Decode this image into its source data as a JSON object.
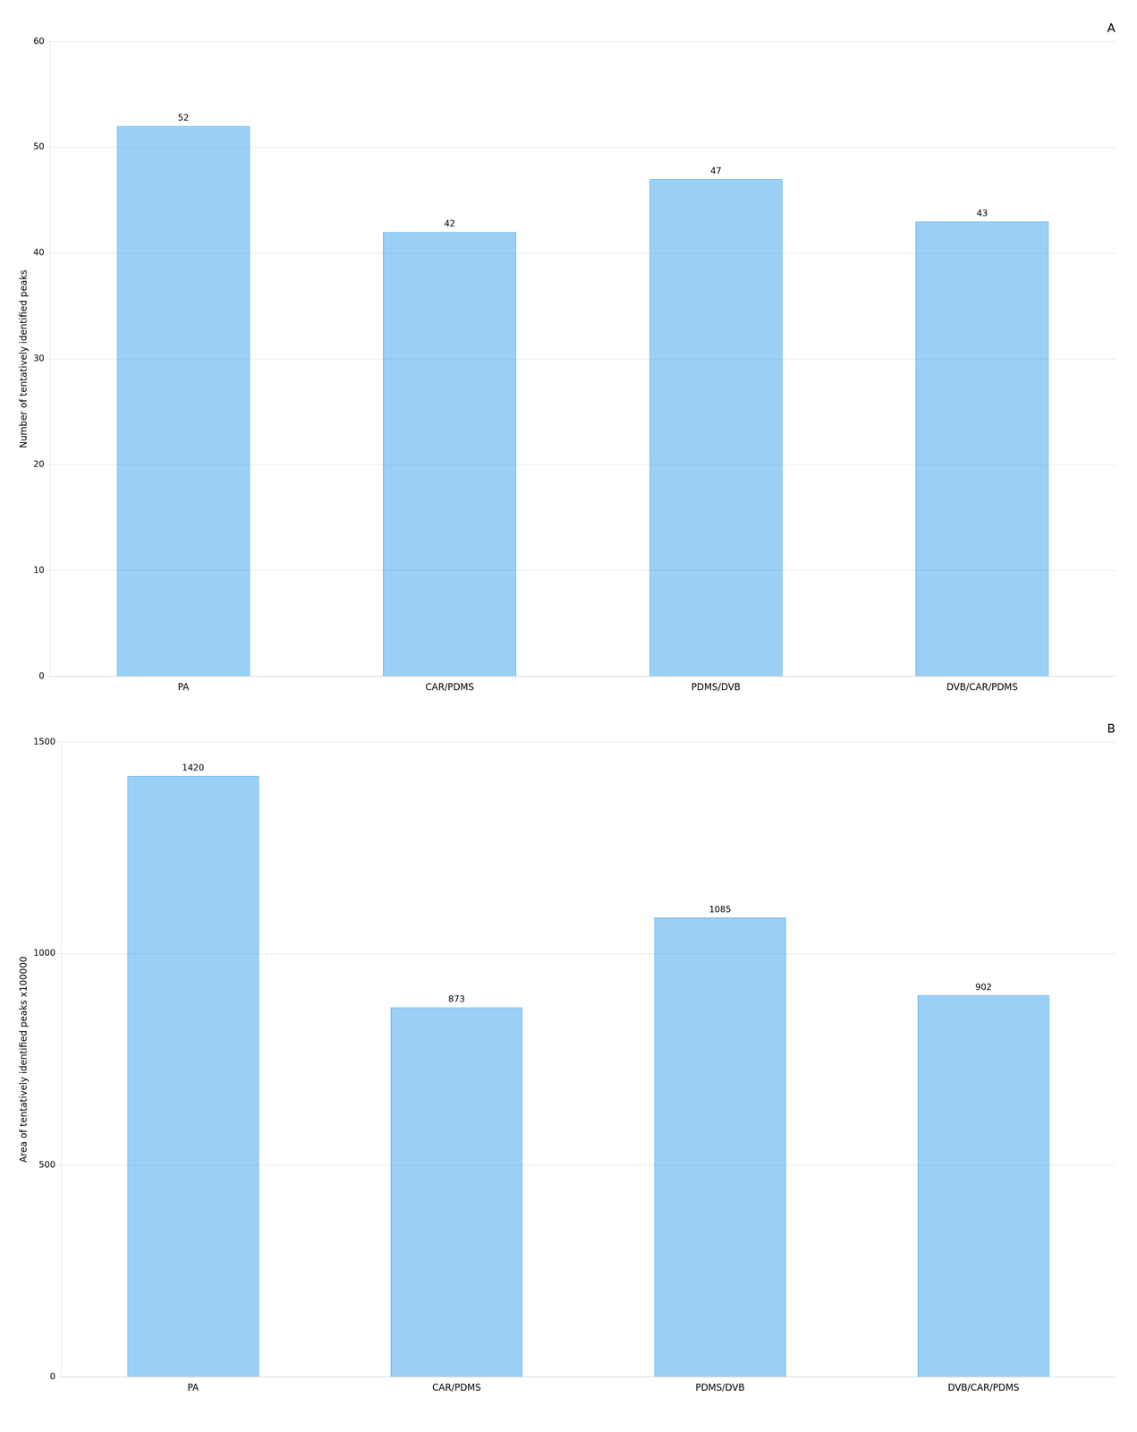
{
  "chart_data": [
    {
      "type": "bar",
      "title": "A",
      "categories": [
        "PA",
        "CAR/PDMS",
        "PDMS/DVB",
        "DVB/CAR/PDMS"
      ],
      "values": [
        52,
        42,
        47,
        43
      ],
      "ylabel": "Number of tentatively identified peaks",
      "ylim": [
        0,
        60
      ],
      "yticks": [
        0,
        10,
        20,
        30,
        40,
        50,
        60
      ],
      "grid": true,
      "data_labels": true
    },
    {
      "type": "bar",
      "title": "B",
      "categories": [
        "PA",
        "CAR/PDMS",
        "PDMS/DVB",
        "DVB/CAR/PDMS"
      ],
      "values": [
        1420,
        873,
        1085,
        902
      ],
      "ylabel": "Area of tentatively identified peaks x100000",
      "ylim": [
        0,
        1500
      ],
      "yticks": [
        0,
        500,
        1000,
        1500
      ],
      "grid": true,
      "data_labels": true
    }
  ]
}
